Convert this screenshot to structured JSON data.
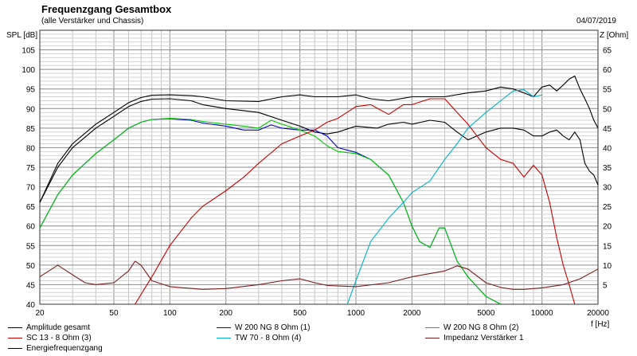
{
  "header": {
    "title": "Frequenzgang Gesamtbox",
    "subtitle": "(alle Verstärker und Chassis)",
    "date": "04/07/2019"
  },
  "chart_data": {
    "type": "line",
    "title": "Frequenzgang Gesamtbox",
    "subtitle": "(alle Verstärker und Chassis)",
    "ylabel_left": "SPL [dB]",
    "ylabel_right": "Z [Ohm]",
    "xlabel": "f [Hz]",
    "x_scale": "log",
    "xlim": [
      20,
      20000
    ],
    "ylim_left": [
      40,
      110
    ],
    "ylim_right": [
      0,
      70
    ],
    "x_ticks": [
      20,
      50,
      100,
      200,
      500,
      1000,
      2000,
      5000,
      10000,
      20000
    ],
    "y_ticks_left": [
      40,
      45,
      50,
      55,
      60,
      65,
      70,
      75,
      80,
      85,
      90,
      95,
      100,
      105
    ],
    "y_ticks_right": [
      5,
      10,
      15,
      20,
      25,
      30,
      35,
      40,
      45,
      50,
      55,
      60,
      65
    ],
    "grid": true,
    "legend_position": "bottom",
    "series": [
      {
        "name": "Amplitude gesamt",
        "axis": "left",
        "color": "#000000",
        "points": [
          [
            20,
            66
          ],
          [
            25,
            75
          ],
          [
            30,
            80
          ],
          [
            40,
            85
          ],
          [
            50,
            88
          ],
          [
            60,
            90.5
          ],
          [
            70,
            91.8
          ],
          [
            80,
            92.4
          ],
          [
            100,
            92.5
          ],
          [
            130,
            92
          ],
          [
            150,
            91
          ],
          [
            200,
            90
          ],
          [
            300,
            89
          ],
          [
            400,
            87
          ],
          [
            500,
            85.5
          ],
          [
            600,
            84
          ],
          [
            700,
            83.5
          ],
          [
            800,
            84
          ],
          [
            1000,
            85.5
          ],
          [
            1300,
            85
          ],
          [
            1500,
            86
          ],
          [
            1800,
            86.5
          ],
          [
            2000,
            86
          ],
          [
            2500,
            87
          ],
          [
            3000,
            86.5
          ],
          [
            3500,
            84
          ],
          [
            4000,
            82
          ],
          [
            5000,
            84
          ],
          [
            6000,
            85
          ],
          [
            7000,
            85
          ],
          [
            8000,
            84.5
          ],
          [
            9000,
            83
          ],
          [
            10000,
            83
          ],
          [
            11000,
            84
          ],
          [
            12000,
            84.5
          ],
          [
            13000,
            83
          ],
          [
            14000,
            82
          ],
          [
            15000,
            84
          ],
          [
            16000,
            82
          ],
          [
            17000,
            76
          ],
          [
            18000,
            74
          ],
          [
            19000,
            73
          ],
          [
            20000,
            70.5
          ]
        ]
      },
      {
        "name": "Energiefrequenzgang",
        "axis": "left",
        "color": "#000000",
        "points": [
          [
            20,
            66
          ],
          [
            25,
            76
          ],
          [
            30,
            81
          ],
          [
            40,
            86
          ],
          [
            50,
            89
          ],
          [
            60,
            91.5
          ],
          [
            70,
            92.8
          ],
          [
            80,
            93.4
          ],
          [
            100,
            93.5
          ],
          [
            130,
            93.3
          ],
          [
            150,
            93
          ],
          [
            200,
            92
          ],
          [
            300,
            91.8
          ],
          [
            400,
            93
          ],
          [
            500,
            93.5
          ],
          [
            600,
            93
          ],
          [
            800,
            93
          ],
          [
            1000,
            93.5
          ],
          [
            1200,
            92.5
          ],
          [
            1500,
            92
          ],
          [
            2000,
            93
          ],
          [
            3000,
            93
          ],
          [
            4000,
            94
          ],
          [
            5000,
            94.5
          ],
          [
            6000,
            95.5
          ],
          [
            7000,
            95
          ],
          [
            8000,
            94
          ],
          [
            9000,
            93
          ],
          [
            10000,
            95.5
          ],
          [
            11000,
            96
          ],
          [
            12000,
            94.5
          ],
          [
            13000,
            96
          ],
          [
            14000,
            97.5
          ],
          [
            15000,
            98.3
          ],
          [
            16000,
            95
          ],
          [
            17000,
            92.5
          ],
          [
            18000,
            90
          ],
          [
            19000,
            87
          ],
          [
            20000,
            85
          ]
        ]
      },
      {
        "name": "W 200 NG 8 Ohm (1)",
        "axis": "left",
        "color": "#0000c8",
        "points": [
          [
            20,
            59.5
          ],
          [
            25,
            68
          ],
          [
            30,
            73
          ],
          [
            40,
            78.5
          ],
          [
            50,
            82
          ],
          [
            60,
            85
          ],
          [
            70,
            86.5
          ],
          [
            80,
            87.2
          ],
          [
            100,
            87.4
          ],
          [
            130,
            87
          ],
          [
            150,
            86.3
          ],
          [
            200,
            85.5
          ],
          [
            250,
            84.5
          ],
          [
            300,
            84.5
          ],
          [
            350,
            85.8
          ],
          [
            400,
            85
          ],
          [
            500,
            84.5
          ],
          [
            600,
            84.5
          ],
          [
            700,
            83
          ],
          [
            800,
            80
          ],
          [
            1000,
            78.8
          ],
          [
            1200,
            77
          ],
          [
            1500,
            73
          ],
          [
            1800,
            66
          ],
          [
            2000,
            60
          ],
          [
            2200,
            56
          ],
          [
            2500,
            54.5
          ],
          [
            2800,
            59.5
          ],
          [
            3000,
            59.5
          ],
          [
            3500,
            51
          ],
          [
            4000,
            47
          ],
          [
            5000,
            42
          ],
          [
            6000,
            40
          ]
        ]
      },
      {
        "name": "W 200 NG 8 Ohm (2)",
        "axis": "left",
        "color": "#00c800",
        "points": [
          [
            20,
            59.5
          ],
          [
            25,
            68
          ],
          [
            30,
            73
          ],
          [
            40,
            78.5
          ],
          [
            50,
            82
          ],
          [
            60,
            85
          ],
          [
            70,
            86.5
          ],
          [
            80,
            87.2
          ],
          [
            100,
            87.5
          ],
          [
            130,
            87.2
          ],
          [
            150,
            86.7
          ],
          [
            200,
            86
          ],
          [
            250,
            85.5
          ],
          [
            300,
            85
          ],
          [
            350,
            87
          ],
          [
            400,
            86
          ],
          [
            500,
            84.5
          ],
          [
            600,
            83
          ],
          [
            700,
            80.5
          ],
          [
            800,
            79
          ],
          [
            1000,
            78.5
          ],
          [
            1200,
            77
          ],
          [
            1500,
            73
          ],
          [
            1800,
            66
          ],
          [
            2000,
            60
          ],
          [
            2200,
            56
          ],
          [
            2500,
            54.5
          ],
          [
            2800,
            59.5
          ],
          [
            3000,
            59.5
          ],
          [
            3500,
            51
          ],
          [
            4000,
            47
          ],
          [
            5000,
            42
          ],
          [
            6000,
            40
          ]
        ]
      },
      {
        "name": "SC 13 - 8 Ohm (3)",
        "axis": "left",
        "color": "#c80000",
        "points": [
          [
            65,
            40
          ],
          [
            80,
            47
          ],
          [
            100,
            55
          ],
          [
            130,
            62
          ],
          [
            150,
            65
          ],
          [
            200,
            69
          ],
          [
            250,
            72.5
          ],
          [
            300,
            76
          ],
          [
            400,
            81
          ],
          [
            500,
            83
          ],
          [
            600,
            84.5
          ],
          [
            700,
            86.5
          ],
          [
            800,
            87.5
          ],
          [
            1000,
            90.5
          ],
          [
            1200,
            91
          ],
          [
            1500,
            88.5
          ],
          [
            1800,
            91
          ],
          [
            2000,
            91
          ],
          [
            2500,
            92.5
          ],
          [
            3000,
            92.5
          ],
          [
            3500,
            89
          ],
          [
            4000,
            86
          ],
          [
            5000,
            80
          ],
          [
            6000,
            77
          ],
          [
            7000,
            76
          ],
          [
            8000,
            72.5
          ],
          [
            9000,
            75.5
          ],
          [
            10000,
            73
          ],
          [
            11000,
            66
          ],
          [
            12000,
            57
          ],
          [
            13000,
            50
          ],
          [
            14000,
            45
          ],
          [
            15000,
            40
          ]
        ]
      },
      {
        "name": "TW 70 - 8 Ohm (4)",
        "axis": "left",
        "color": "#00b4c8",
        "points": [
          [
            900,
            40
          ],
          [
            1000,
            46
          ],
          [
            1200,
            56
          ],
          [
            1500,
            62
          ],
          [
            1800,
            66
          ],
          [
            2000,
            68.5
          ],
          [
            2500,
            71.5
          ],
          [
            3000,
            77
          ],
          [
            3500,
            81
          ],
          [
            4000,
            85
          ],
          [
            5000,
            89
          ],
          [
            6000,
            92
          ],
          [
            7000,
            94.5
          ],
          [
            8000,
            94.8
          ],
          [
            9000,
            93
          ],
          [
            10000,
            93.5
          ]
        ]
      },
      {
        "name": "Impedanz Verstärker 1",
        "axis": "right",
        "color": "#7a1e1e",
        "points": [
          [
            20,
            7
          ],
          [
            25,
            10
          ],
          [
            30,
            7.5
          ],
          [
            35,
            5.5
          ],
          [
            40,
            5
          ],
          [
            50,
            5.5
          ],
          [
            60,
            8.5
          ],
          [
            65,
            11
          ],
          [
            70,
            10
          ],
          [
            80,
            6
          ],
          [
            100,
            4.5
          ],
          [
            150,
            3.8
          ],
          [
            200,
            4
          ],
          [
            300,
            5
          ],
          [
            400,
            6
          ],
          [
            500,
            6.5
          ],
          [
            600,
            5.5
          ],
          [
            700,
            4.8
          ],
          [
            1000,
            4.5
          ],
          [
            1500,
            5.5
          ],
          [
            2000,
            7
          ],
          [
            3000,
            8.5
          ],
          [
            3500,
            9.8
          ],
          [
            4000,
            9
          ],
          [
            5000,
            5.5
          ],
          [
            6000,
            4.3
          ],
          [
            7000,
            3.8
          ],
          [
            8000,
            3.8
          ],
          [
            10000,
            4.2
          ],
          [
            13000,
            5
          ],
          [
            16000,
            6.5
          ],
          [
            20000,
            9
          ]
        ]
      }
    ]
  }
}
